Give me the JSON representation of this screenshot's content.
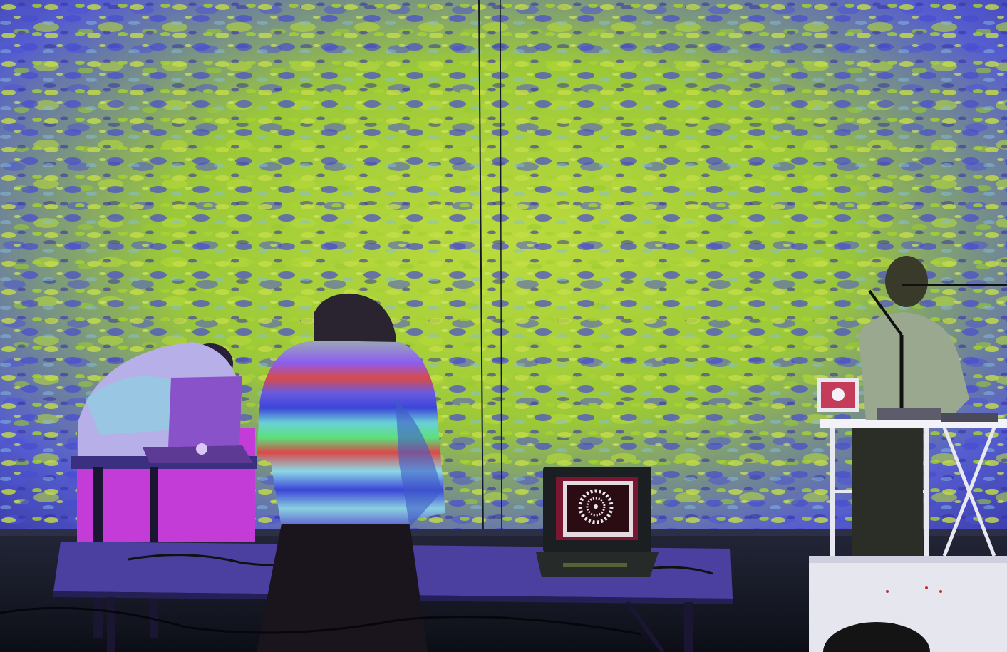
{
  "scene": {
    "description_hidden": "",
    "colors": {
      "projection_green": "#b6e81e",
      "projection_lime": "#d8f53a",
      "projection_blue": "#4a4fd6",
      "projection_violet": "#3b2fa8",
      "projection_cyan": "#8fd0e8",
      "floor": "#1a1d2a",
      "table_top": "#4b3fa0",
      "magenta_cloth": "#c43cd8",
      "laptop_dark": "#1b1f22",
      "laptop_screen": "#7a1630",
      "stand_white": "#e6e6ef",
      "sweater_stripes": [
        "#8c5cf0",
        "#d84a4a",
        "#6ad0d8",
        "#3c45d8",
        "#5ce07a",
        "#e8e8f0"
      ]
    },
    "icons": [
      "performer-left",
      "performer-center",
      "performer-right",
      "laptop-center",
      "laptop-left",
      "laptop-right",
      "microphone",
      "audience-head"
    ]
  }
}
